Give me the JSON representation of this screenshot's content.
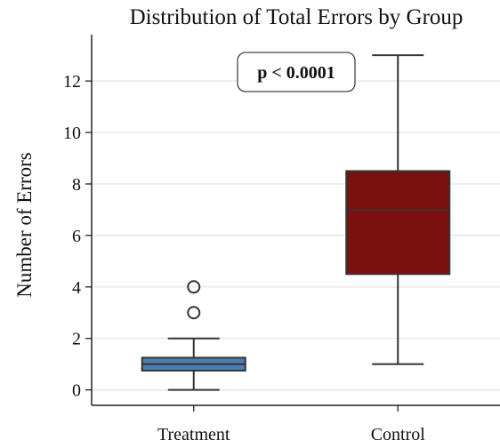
{
  "chart_data": {
    "type": "box",
    "title": "Distribution of Total Errors by Group",
    "xlabel": "",
    "ylabel": "Number of Errors",
    "ylim": [
      -0.6,
      13.8
    ],
    "yticks": [
      0,
      2,
      4,
      6,
      8,
      10,
      12
    ],
    "grid": "horizontal",
    "categories": [
      "Treatment",
      "Control"
    ],
    "boxes": [
      {
        "name": "Treatment",
        "color": "#4c7fb0",
        "min": 0,
        "q1": 0.75,
        "median": 1,
        "q3": 1.25,
        "max": 2,
        "outliers": [
          3,
          4
        ]
      },
      {
        "name": "Control",
        "color": "#7a1010",
        "min": 1,
        "q1": 4.5,
        "median": 7,
        "q3": 8.5,
        "max": 13,
        "outliers": []
      }
    ],
    "annotation": {
      "text": "p < 0.0001",
      "x": 0.5,
      "y": 12.3
    }
  }
}
